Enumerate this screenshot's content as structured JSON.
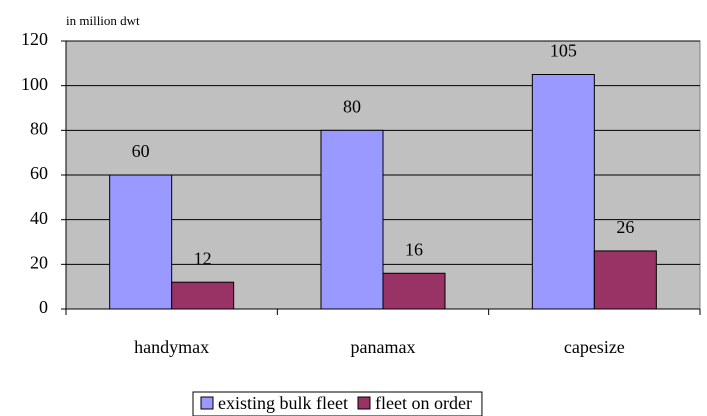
{
  "chart_data": {
    "type": "bar",
    "y_label": "in million dwt",
    "categories": [
      "handymax",
      "panamax",
      "capesize"
    ],
    "series": [
      {
        "name": "existing bulk fleet",
        "color": "#9999ff",
        "values": [
          60,
          80,
          105
        ]
      },
      {
        "name": "fleet on order",
        "color": "#993366",
        "values": [
          12,
          16,
          26
        ]
      }
    ],
    "ylim": [
      0,
      120
    ],
    "yticks": [
      0,
      20,
      40,
      60,
      80,
      100,
      120
    ],
    "grid": true,
    "legend": "bottom",
    "plot_background": "#c0c0c0"
  }
}
